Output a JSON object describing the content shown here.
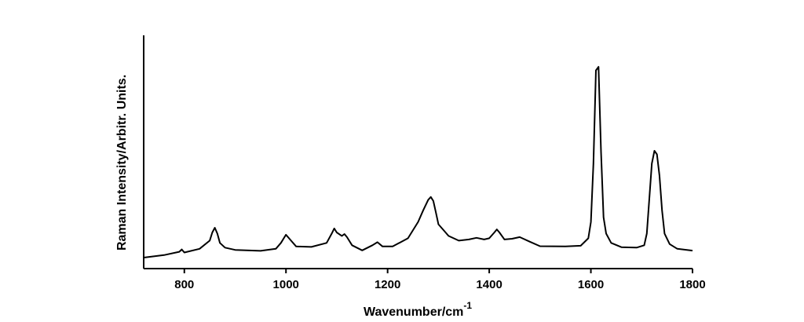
{
  "chart_data": {
    "type": "line",
    "title": "",
    "xlabel": "Wavenumber/cm",
    "xlabel_superscript": "-1",
    "ylabel": "Raman Intensity/Arbitr. Units.",
    "xlim": [
      720,
      1800
    ],
    "ylim": [
      0,
      100
    ],
    "x_ticks": [
      800,
      1000,
      1200,
      1400,
      1600,
      1800
    ],
    "y_ticks_labeled": false,
    "grid": false,
    "legend": "none",
    "series": [
      {
        "color": "#000000",
        "x": [
          720,
          760,
          790,
          795,
          800,
          830,
          850,
          855,
          860,
          865,
          870,
          880,
          900,
          950,
          980,
          990,
          1000,
          1010,
          1020,
          1050,
          1080,
          1090,
          1095,
          1100,
          1110,
          1115,
          1120,
          1130,
          1150,
          1170,
          1180,
          1190,
          1210,
          1240,
          1260,
          1270,
          1280,
          1285,
          1290,
          1295,
          1300,
          1310,
          1320,
          1340,
          1360,
          1375,
          1390,
          1400,
          1410,
          1415,
          1420,
          1430,
          1445,
          1460,
          1480,
          1500,
          1550,
          1580,
          1595,
          1600,
          1605,
          1610,
          1615,
          1620,
          1625,
          1630,
          1640,
          1660,
          1690,
          1705,
          1710,
          1715,
          1720,
          1725,
          1730,
          1735,
          1740,
          1745,
          1755,
          1770,
          1800
        ],
        "values": [
          4.7,
          5.8,
          7.2,
          8.2,
          6.9,
          8.5,
          12,
          15.5,
          17.5,
          15,
          11,
          9,
          8,
          7.6,
          8.5,
          11,
          14.5,
          12,
          9.5,
          9.3,
          11,
          15,
          17.2,
          15.5,
          14,
          14.8,
          13.5,
          10,
          7.8,
          10,
          11.3,
          9.5,
          9.5,
          13,
          20,
          25,
          29.5,
          30.7,
          29,
          24,
          19,
          16.5,
          14,
          12,
          12.5,
          13.2,
          12.5,
          13,
          15.5,
          16.8,
          15.5,
          12.5,
          12.8,
          13.5,
          11.5,
          9.6,
          9.5,
          9.8,
          13,
          20,
          45,
          85,
          86.5,
          50,
          22,
          15,
          11,
          9.2,
          9,
          10,
          15,
          30,
          45,
          50.5,
          49,
          40,
          25,
          15,
          10.5,
          8.5,
          7.7
        ]
      }
    ]
  }
}
